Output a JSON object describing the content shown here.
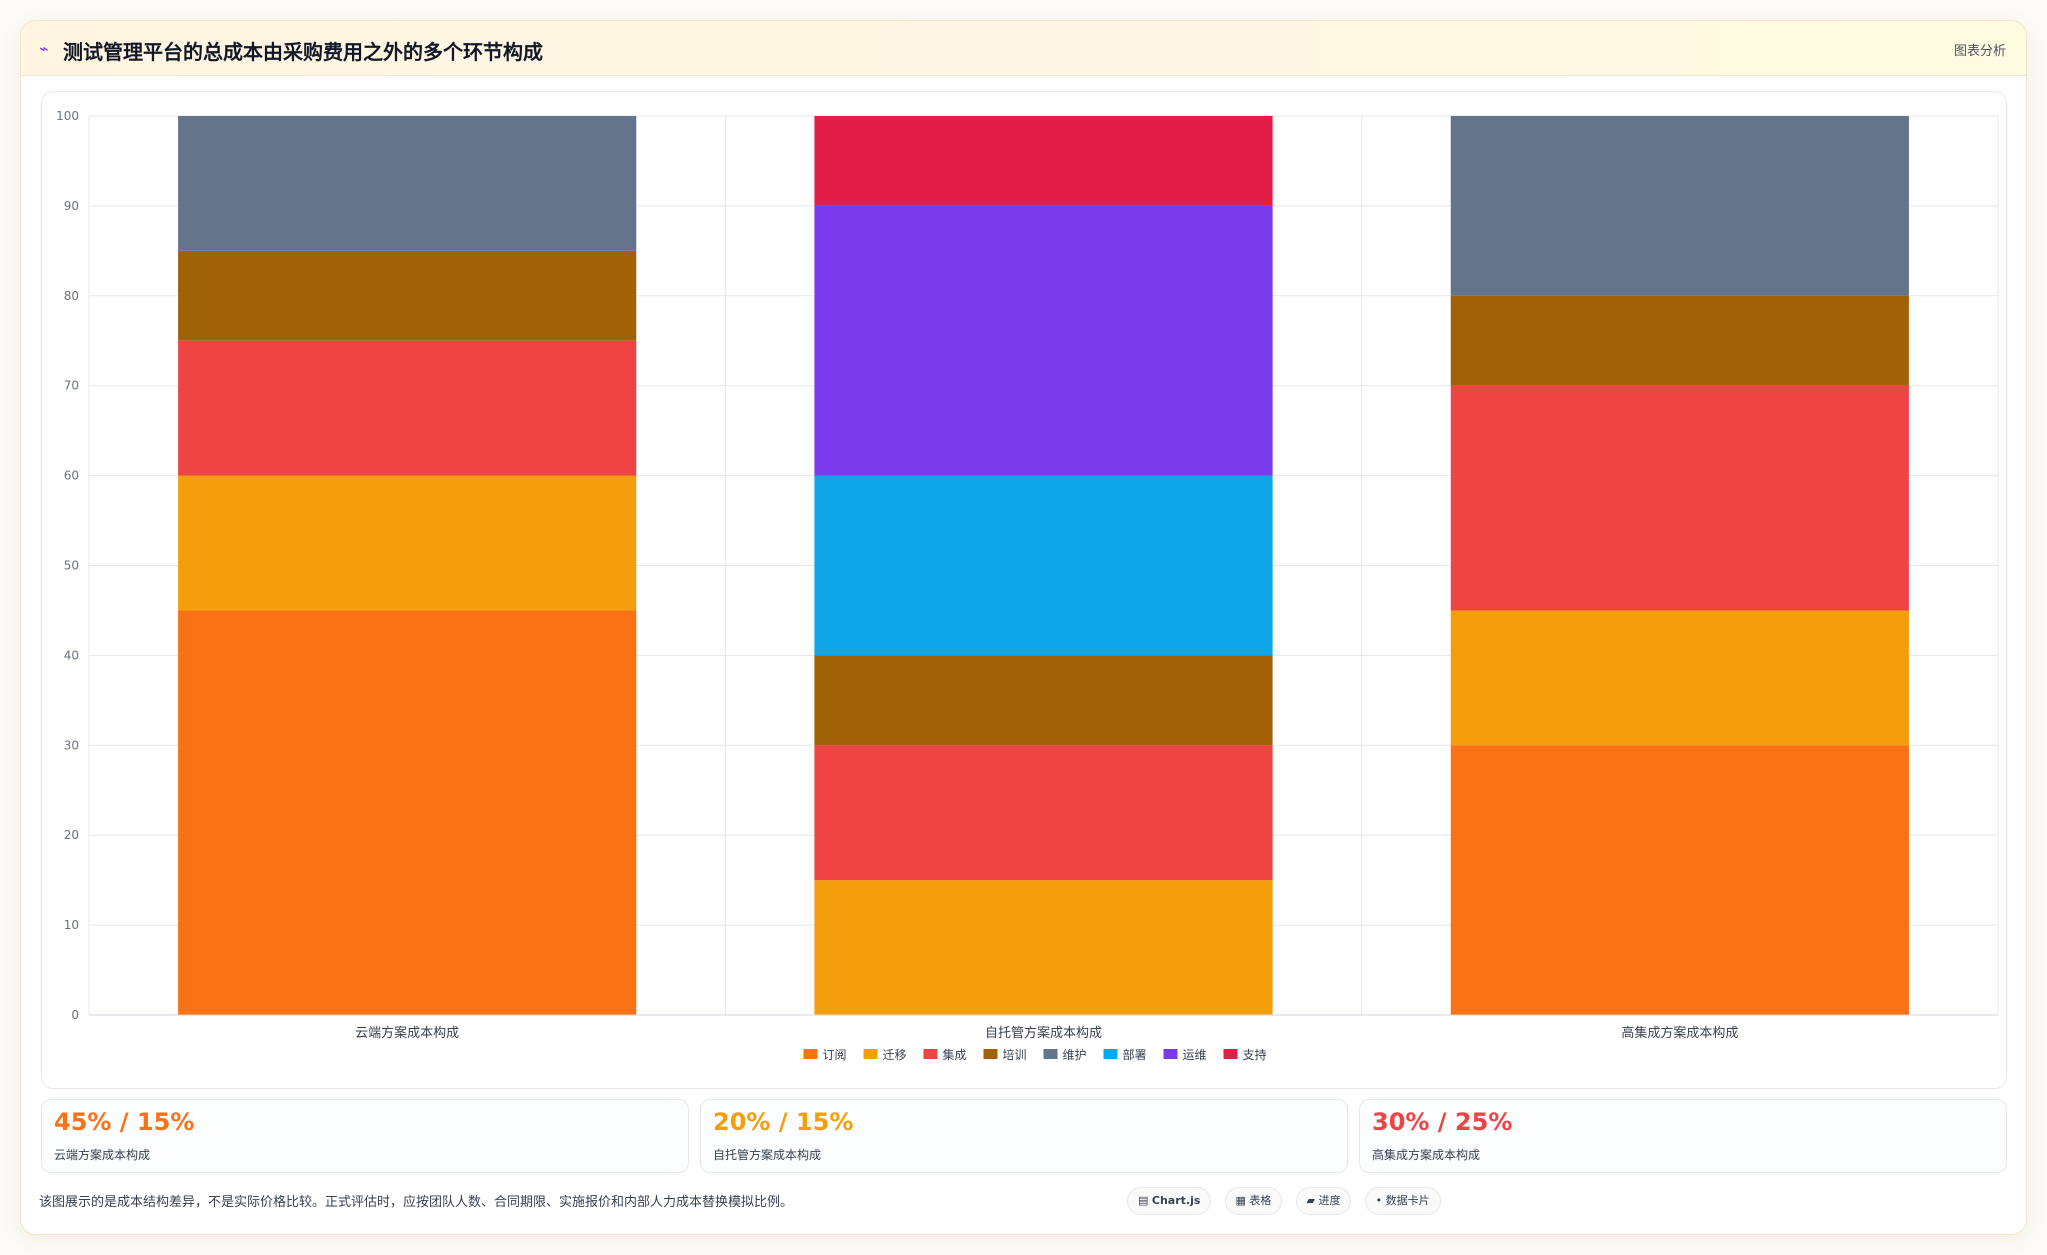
{
  "header": {
    "icon": "line-chart-icon",
    "title": "测试管理平台的总成本由采购费用之外的多个环节构成",
    "tag": "图表分析"
  },
  "chart_data": {
    "type": "bar",
    "stacked": true,
    "categories": [
      "云端方案成本构成",
      "自托管方案成本构成",
      "高集成方案成本构成"
    ],
    "ylim": [
      0,
      100
    ],
    "yticks": [
      0,
      10,
      20,
      30,
      40,
      50,
      60,
      70,
      80,
      90,
      100
    ],
    "grid": true,
    "legend_position": "bottom",
    "series": [
      {
        "name": "订阅",
        "color": "#f97316",
        "values": [
          45,
          0,
          30
        ]
      },
      {
        "name": "迁移",
        "color": "#f59e0b",
        "values": [
          15,
          15,
          15
        ]
      },
      {
        "name": "集成",
        "color": "#ef4444",
        "values": [
          15,
          15,
          25
        ]
      },
      {
        "name": "培训",
        "color": "#a16207",
        "values": [
          10,
          10,
          10
        ]
      },
      {
        "name": "维护",
        "color": "#64748b",
        "values": [
          15,
          0,
          20
        ]
      },
      {
        "name": "部署",
        "color": "#0ea5e9",
        "values": [
          0,
          20,
          0
        ]
      },
      {
        "name": "运维",
        "color": "#7c3aed",
        "values": [
          0,
          30,
          0
        ]
      },
      {
        "name": "支持",
        "color": "#e11d48",
        "values": [
          0,
          10,
          0
        ]
      }
    ]
  },
  "cards": [
    {
      "value": "45% / 15%",
      "label": "云端方案成本构成",
      "color": "#f97316"
    },
    {
      "value": "20% / 15%",
      "label": "自托管方案成本构成",
      "color": "#f59e0b"
    },
    {
      "value": "30% / 25%",
      "label": "高集成方案成本构成",
      "color": "#ef4444"
    }
  ],
  "note": "该图展示的是成本结构差异，不是实际价格比较。正式评估时，应按团队人数、合同期限、实施报价和内部人力成本替换模拟比例。",
  "pills": [
    {
      "icon": "▤",
      "label": "Chart.js",
      "bold": true
    },
    {
      "icon": "▦",
      "label": "表格",
      "bold": false
    },
    {
      "icon": "▰",
      "label": "进度",
      "bold": false
    },
    {
      "icon": "•",
      "label": "数据卡片",
      "bold": false
    }
  ]
}
